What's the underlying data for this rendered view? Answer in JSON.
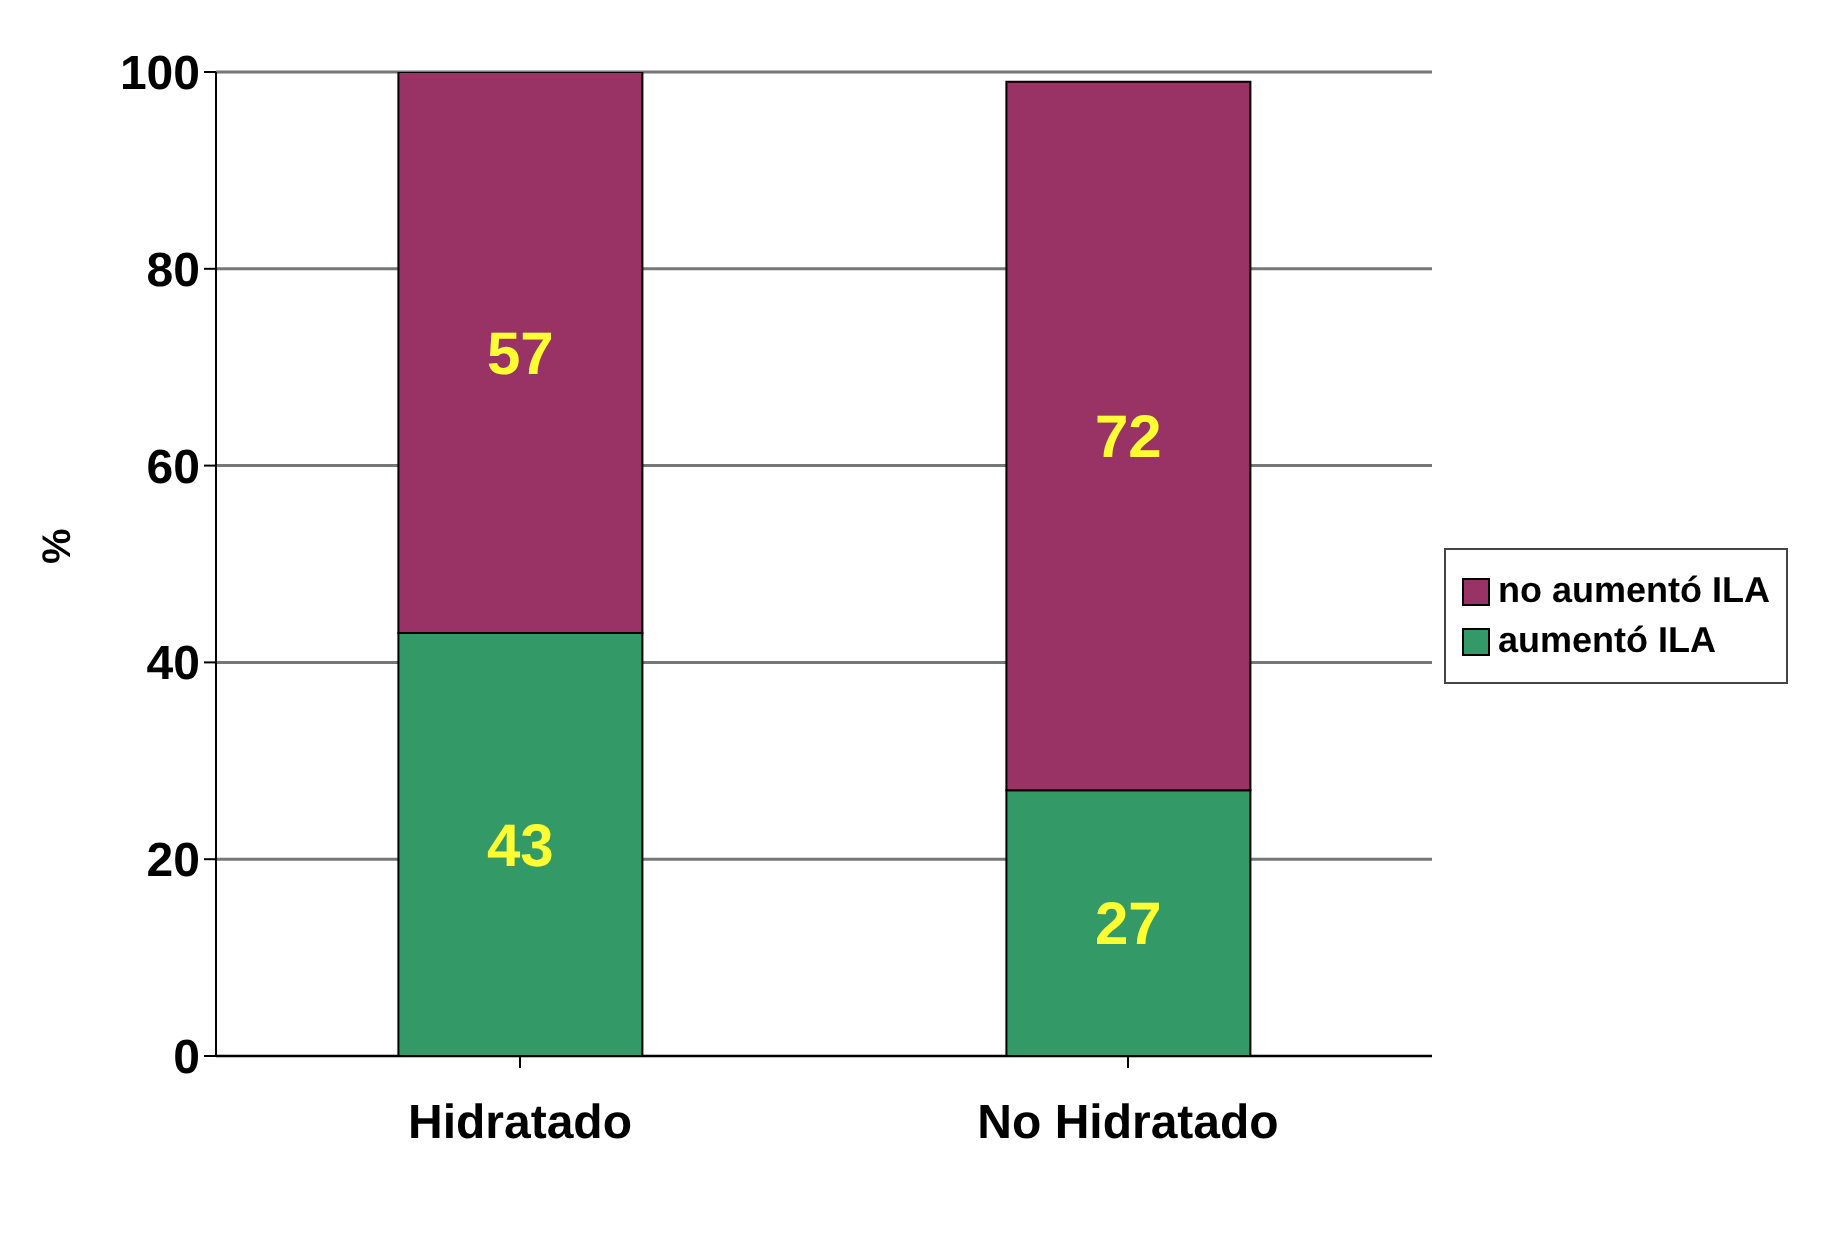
{
  "chart_data": {
    "type": "bar",
    "stacked": true,
    "ylabel": "%",
    "categories": [
      "Hidratado",
      "No Hidratado"
    ],
    "series": [
      {
        "name": "aumentó ILA",
        "color": "#339966",
        "values": [
          43,
          27
        ]
      },
      {
        "name": "no aumentó ILA",
        "color": "#993366",
        "values": [
          57,
          72
        ]
      }
    ],
    "ylim": [
      0,
      100
    ],
    "yticks": [
      0,
      20,
      40,
      60,
      80,
      100
    ],
    "grid": "y",
    "legend": "right",
    "data_labels": true
  }
}
